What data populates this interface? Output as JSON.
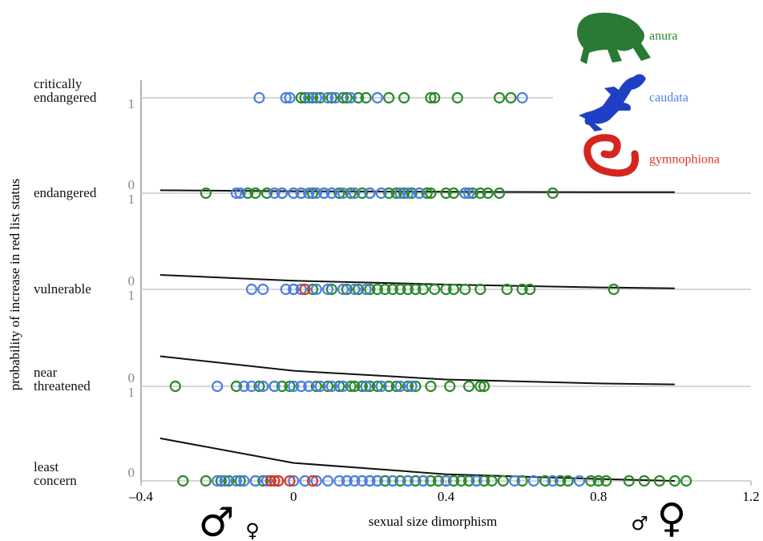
{
  "chart_data": {
    "type": "scatter",
    "x_label": "sexual size dimorphism",
    "y_label": "probability of increase in red list status",
    "categories": [
      "critically\nendangered",
      "endangered",
      "vulnerable",
      "near\nthreatened",
      "least\nconcern"
    ],
    "xlim": [
      -0.4,
      1.2
    ],
    "xticks": [
      {
        "value": -0.4,
        "label": "–0.4"
      },
      0,
      0.4,
      0.8,
      1.2
    ],
    "ylim": [
      0,
      1
    ],
    "yticks": [
      0,
      1
    ],
    "series": [
      {
        "name": "anura",
        "color": "#2a8a2a",
        "x": [
          [
            0.02,
            0.03,
            0.05,
            0.07,
            0.1,
            0.13,
            0.14,
            0.17,
            0.19,
            0.25,
            0.29,
            0.36,
            0.37,
            0.43,
            0.54,
            0.57
          ],
          [
            -0.23,
            -0.12,
            -0.1,
            -0.07,
            -0.03,
            0.0,
            0.02,
            0.05,
            0.08,
            0.12,
            0.15,
            0.18,
            0.2,
            0.25,
            0.27,
            0.29,
            0.31,
            0.33,
            0.35,
            0.36,
            0.4,
            0.42,
            0.45,
            0.47,
            0.49,
            0.51,
            0.54,
            0.68
          ],
          [
            0.0,
            0.05,
            0.1,
            0.14,
            0.17,
            0.2,
            0.22,
            0.24,
            0.26,
            0.28,
            0.3,
            0.32,
            0.34,
            0.37,
            0.4,
            0.42,
            0.45,
            0.49,
            0.56,
            0.6,
            0.62,
            0.84
          ],
          [
            -0.31,
            -0.15,
            -0.09,
            -0.05,
            -0.03,
            -0.01,
            0.06,
            0.09,
            0.12,
            0.15,
            0.16,
            0.18,
            0.2,
            0.22,
            0.25,
            0.27,
            0.3,
            0.32,
            0.36,
            0.41,
            0.46,
            0.49,
            0.5
          ],
          [
            -0.29,
            -0.23,
            -0.19,
            -0.17,
            -0.14,
            -0.1,
            -0.08,
            0.2,
            0.22,
            0.24,
            0.26,
            0.28,
            0.3,
            0.32,
            0.34,
            0.36,
            0.38,
            0.4,
            0.42,
            0.44,
            0.46,
            0.48,
            0.5,
            0.52,
            0.55,
            0.6,
            0.66,
            0.7,
            0.72,
            0.78,
            0.8,
            0.82,
            0.88,
            0.92,
            0.96,
            1.0,
            1.03
          ]
        ]
      },
      {
        "name": "caudata",
        "color": "#4d7fe0",
        "x": [
          [
            -0.09,
            -0.02,
            -0.01,
            0.04,
            0.06,
            0.09,
            0.11,
            0.15,
            0.22,
            0.6
          ],
          [
            -0.15,
            -0.14,
            -0.05,
            -0.03,
            0.0,
            0.02,
            0.04,
            0.06,
            0.08,
            0.1,
            0.13,
            0.16,
            0.2,
            0.23,
            0.28,
            0.3,
            0.33,
            0.45,
            0.46
          ],
          [
            -0.11,
            -0.08,
            -0.02,
            0.0,
            0.02,
            0.06,
            0.09,
            0.13,
            0.16,
            0.19
          ],
          [
            -0.2,
            -0.13,
            -0.11,
            -0.08,
            -0.05,
            0.0,
            0.02,
            0.04,
            0.07,
            0.1,
            0.13,
            0.19,
            0.23,
            0.28,
            0.31
          ],
          [
            -0.2,
            -0.18,
            -0.15,
            -0.13,
            -0.1,
            -0.07,
            -0.04,
            0.0,
            0.03,
            0.06,
            0.09,
            0.12,
            0.14,
            0.16,
            0.18,
            0.2,
            0.22,
            0.26,
            0.3,
            0.34,
            0.4,
            0.48,
            0.58,
            0.63,
            0.68,
            0.75
          ]
        ]
      },
      {
        "name": "gymnophiona",
        "color": "#d93a2a",
        "x": [
          [],
          [],
          [
            0.03
          ],
          [],
          [
            -0.06,
            -0.05,
            -0.04,
            -0.01,
            0.05
          ]
        ]
      }
    ],
    "curves": [
      {
        "x": [
          -0.35,
          0,
          0.4,
          0.8,
          1.0
        ],
        "values": [
          0.03,
          0.02,
          0.015,
          0.01,
          0.01
        ]
      },
      {
        "x": [
          -0.35,
          0,
          0.4,
          0.8,
          1.0
        ],
        "values": [
          0.15,
          0.09,
          0.05,
          0.02,
          0.01
        ]
      },
      {
        "x": [
          -0.35,
          0,
          0.4,
          0.8,
          1.0
        ],
        "values": [
          0.31,
          0.16,
          0.07,
          0.03,
          0.02
        ]
      },
      {
        "x": [
          -0.35,
          0,
          0.4,
          0.8,
          1.0
        ],
        "values": [
          0.45,
          0.19,
          0.07,
          0.02,
          0.0
        ]
      }
    ],
    "annotations": [
      "♂",
      "♀",
      "♂",
      "♀"
    ]
  }
}
